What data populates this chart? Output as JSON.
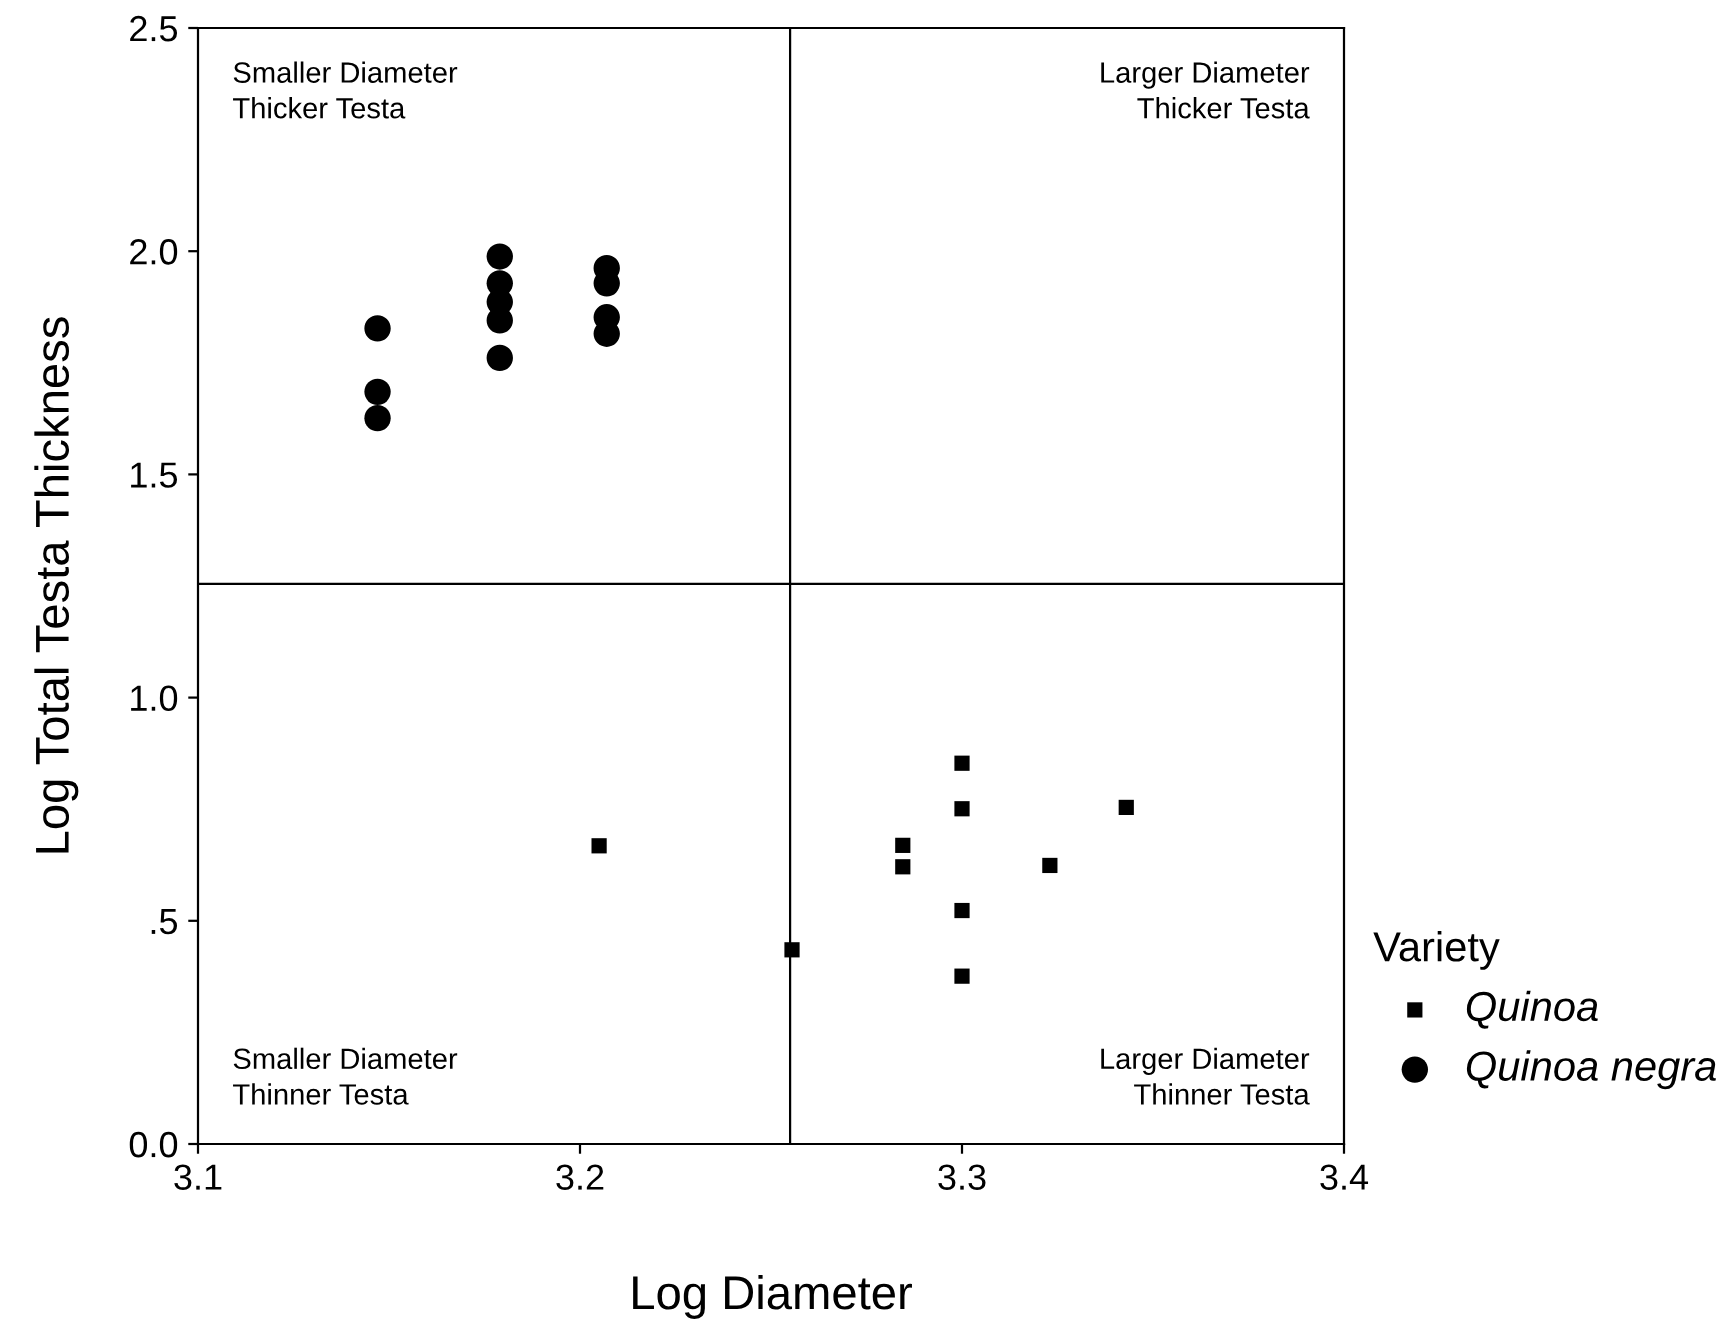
{
  "chart_data": {
    "type": "scatter",
    "xlabel": "Log Diameter",
    "ylabel": "Log Total Testa Thickness",
    "legend_title": "Variety",
    "legend": "right",
    "grid": false,
    "xlim": [
      3.1,
      3.4
    ],
    "xticks": [
      {
        "value": 3.1,
        "label": "3.1"
      },
      {
        "value": 3.2,
        "label": "3.2"
      },
      {
        "value": 3.3,
        "label": "3.3"
      },
      {
        "value": 3.4,
        "label": "3.4"
      }
    ],
    "ylim": [
      0,
      2.5
    ],
    "yticks": [
      {
        "value": 0,
        "label": "0.0"
      },
      {
        "value": 0.5,
        "label": ".5"
      },
      {
        "value": 1,
        "label": "1.0"
      },
      {
        "value": 1.5,
        "label": "1.5"
      },
      {
        "value": 2,
        "label": "2.0"
      },
      {
        "value": 2.5,
        "label": "2.5"
      }
    ],
    "ref_lines": [
      {
        "axis": "x",
        "value": 3.255,
        "color": "#000000"
      },
      {
        "axis": "y",
        "value": 1.255,
        "color": "#000000"
      }
    ],
    "annotations": [
      "Smaller Diameter\nThicker Testa",
      "Larger Diameter\nThicker Testa",
      "Smaller Diameter\nThinner Testa",
      "Larger Diameter\nThinner Testa"
    ],
    "series": [
      {
        "name": "Quinoa",
        "color": "#000000",
        "marker": "square",
        "x": [
          3.205,
          3.3,
          3.3,
          3.343,
          3.2845,
          3.2845,
          3.323,
          3.3,
          3.2555,
          3.3
        ],
        "values": [
          0.668,
          0.853,
          0.751,
          0.754,
          0.669,
          0.621,
          0.624,
          0.523,
          0.435,
          0.376
        ]
      },
      {
        "name": "Quinoa negra",
        "color": "#000000",
        "marker": "circle",
        "x": [
          3.147,
          3.147,
          3.147,
          3.179,
          3.179,
          3.179,
          3.179,
          3.179,
          3.207,
          3.207,
          3.207,
          3.207
        ],
        "values": [
          1.827,
          1.685,
          1.626,
          1.988,
          1.928,
          1.886,
          1.845,
          1.761,
          1.962,
          1.928,
          1.852,
          1.815
        ]
      }
    ]
  }
}
